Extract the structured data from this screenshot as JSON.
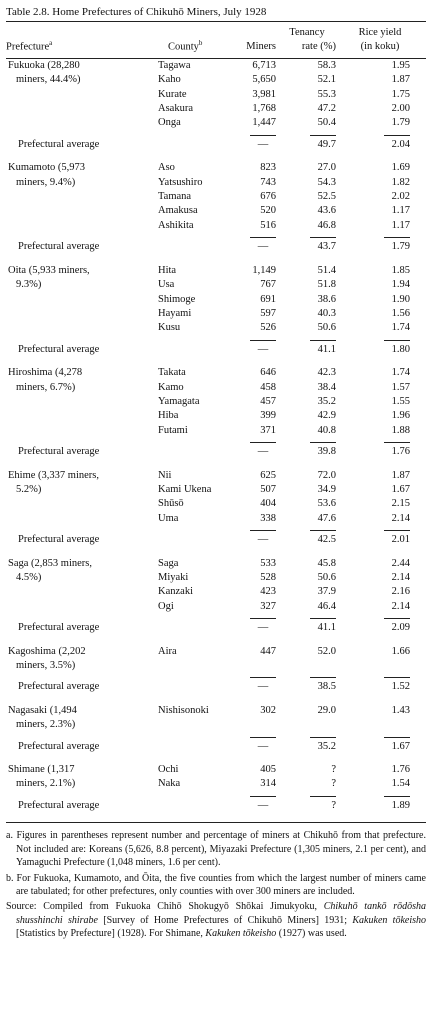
{
  "title": "Table 2.8. Home Prefectures of Chikuhō Miners, July 1928",
  "table": {
    "header": {
      "prefecture": "Prefecture",
      "prefecture_note": "a",
      "county": "County",
      "county_note": "b",
      "miners": "Miners",
      "tenancy": [
        "Tenancy",
        "rate (%)"
      ],
      "rice": [
        "Rice yield",
        "(in koku)"
      ]
    },
    "groups": [
      {
        "prefecture": [
          "Fukuoka (28,280",
          "miners, 44.4%)"
        ],
        "rows": [
          [
            "Tagawa",
            "6,713",
            "58.3",
            "1.95"
          ],
          [
            "Kaho",
            "5,650",
            "52.1",
            "1.87"
          ],
          [
            "Kurate",
            "3,981",
            "55.3",
            "1.75"
          ],
          [
            "Asakura",
            "1,768",
            "47.2",
            "2.00"
          ],
          [
            "Onga",
            "1,447",
            "50.4",
            "1.79"
          ]
        ],
        "average": [
          "Prefectural average",
          "—",
          "49.7",
          "2.04"
        ]
      },
      {
        "prefecture": [
          "Kumamoto (5,973",
          "miners, 9.4%)"
        ],
        "rows": [
          [
            "Aso",
            "823",
            "27.0",
            "1.69"
          ],
          [
            "Yatsushiro",
            "743",
            "54.3",
            "1.82"
          ],
          [
            "Tamana",
            "676",
            "52.5",
            "2.02"
          ],
          [
            "Amakusa",
            "520",
            "43.6",
            "1.17"
          ],
          [
            "Ashikita",
            "516",
            "46.8",
            "1.17"
          ]
        ],
        "average": [
          "Prefectural average",
          "—",
          "43.7",
          "1.79"
        ]
      },
      {
        "prefecture": [
          "Oita (5,933 miners,",
          "9.3%)"
        ],
        "rows": [
          [
            "Hita",
            "1,149",
            "51.4",
            "1.85"
          ],
          [
            "Usa",
            "767",
            "51.8",
            "1.94"
          ],
          [
            "Shimoge",
            "691",
            "38.6",
            "1.90"
          ],
          [
            "Hayami",
            "597",
            "40.3",
            "1.56"
          ],
          [
            "Kusu",
            "526",
            "50.6",
            "1.74"
          ]
        ],
        "average": [
          "Prefectural average",
          "—",
          "41.1",
          "1.80"
        ]
      },
      {
        "prefecture": [
          "Hiroshima (4,278",
          "miners, 6.7%)"
        ],
        "rows": [
          [
            "Takata",
            "646",
            "42.3",
            "1.74"
          ],
          [
            "Kamo",
            "458",
            "38.4",
            "1.57"
          ],
          [
            "Yamagata",
            "457",
            "35.2",
            "1.55"
          ],
          [
            "Hiba",
            "399",
            "42.9",
            "1.96"
          ],
          [
            "Futami",
            "371",
            "40.8",
            "1.88"
          ]
        ],
        "average": [
          "Prefectural average",
          "—",
          "39.8",
          "1.76"
        ]
      },
      {
        "prefecture": [
          "Ehime (3,337 miners,",
          "5.2%)"
        ],
        "rows": [
          [
            "Nii",
            "625",
            "72.0",
            "1.87"
          ],
          [
            "Kami Ukena",
            "507",
            "34.9",
            "1.67"
          ],
          [
            "Shūsō",
            "404",
            "53.6",
            "2.15"
          ],
          [
            "Uma",
            "338",
            "47.6",
            "2.14"
          ]
        ],
        "average": [
          "Prefectural average",
          "—",
          "42.5",
          "2.01"
        ]
      },
      {
        "prefecture": [
          "Saga (2,853 miners,",
          "4.5%)"
        ],
        "rows": [
          [
            "Saga",
            "533",
            "45.8",
            "2.44"
          ],
          [
            "Miyaki",
            "528",
            "50.6",
            "2.14"
          ],
          [
            "Kanzaki",
            "423",
            "37.9",
            "2.16"
          ],
          [
            "Ogi",
            "327",
            "46.4",
            "2.14"
          ]
        ],
        "average": [
          "Prefectural average",
          "—",
          "41.1",
          "2.09"
        ]
      },
      {
        "prefecture": [
          "Kagoshima (2,202",
          "miners, 3.5%)"
        ],
        "rows": [
          [
            "Aira",
            "447",
            "52.0",
            "1.66"
          ]
        ],
        "average": [
          "Prefectural average",
          "—",
          "38.5",
          "1.52"
        ]
      },
      {
        "prefecture": [
          "Nagasaki (1,494",
          "miners, 2.3%)"
        ],
        "rows": [
          [
            "Nishisonoki",
            "302",
            "29.0",
            "1.43"
          ]
        ],
        "average": [
          "Prefectural average",
          "—",
          "35.2",
          "1.67"
        ]
      },
      {
        "prefecture": [
          "Shimane (1,317",
          "miners, 2.1%)"
        ],
        "rows": [
          [
            "Ochi",
            "405",
            "?",
            "1.76"
          ],
          [
            "Naka",
            "314",
            "?",
            "1.54"
          ]
        ],
        "average": [
          "Prefectural average",
          "—",
          "?",
          "1.89"
        ]
      }
    ]
  },
  "notes": [
    "a. Figures in parentheses represent number and percentage of miners at Chikuhō from that prefecture. Not included are: Koreans (5,626, 8.8 percent), Miyazaki Prefecture (1,305 miners, 2.1 per cent), and Yamaguchi Prefecture (1,048 miners, 1.6 per cent).",
    "b. For Fukuoka, Kumamoto, and Ōita, the five counties from which the largest number of miners came are tabulated; for other prefectures, only counties with over 300 miners are included."
  ],
  "source": [
    "Source: Compiled from Fukuoka Chihō Shokugyō Shōkai Jimukyoku, ",
    "Chikuhō tankō rōdōsha shusshinchi shirabe",
    " [Survey of Home Prefectures of Chikuhō Miners] 1931; ",
    "Kakuken tōkeisho",
    " [Statistics by Prefecture] (1928). For Shimane, ",
    "Kakuken tōkeisho",
    " (1927) was used."
  ]
}
